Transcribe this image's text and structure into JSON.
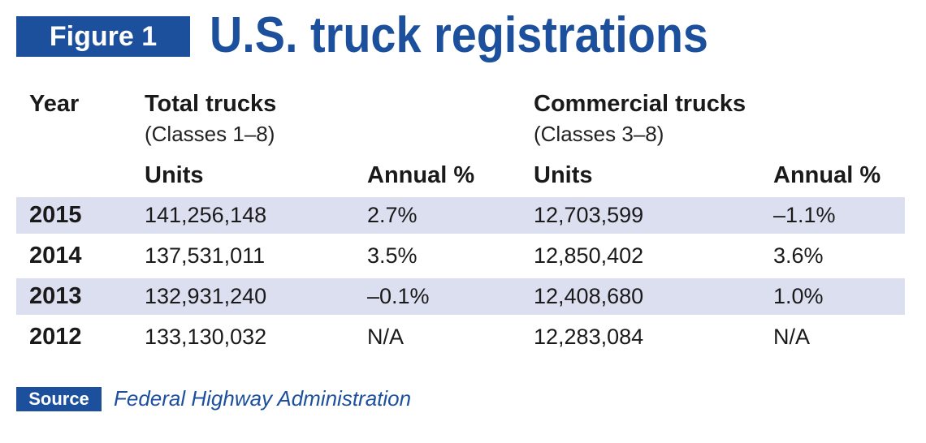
{
  "figure_label": "Figure 1",
  "title": "U.S. truck registrations",
  "chart_data": {
    "type": "table",
    "title": "U.S. truck registrations",
    "columns": {
      "year": "Year",
      "total_group": "Total trucks",
      "total_sub": "(Classes 1–8)",
      "commercial_group": "Commercial trucks",
      "commercial_sub": "(Classes 3–8)",
      "units": "Units",
      "annual": "Annual %"
    },
    "rows": [
      {
        "year": "2015",
        "total_units": "141,256,148",
        "total_annual": "2.7%",
        "commercial_units": "12,703,599",
        "commercial_annual": "–1.1%"
      },
      {
        "year": "2014",
        "total_units": "137,531,011",
        "total_annual": "3.5%",
        "commercial_units": "12,850,402",
        "commercial_annual": "3.6%"
      },
      {
        "year": "2013",
        "total_units": "132,931,240",
        "total_annual": "–0.1%",
        "commercial_units": "12,408,680",
        "commercial_annual": "1.0%"
      },
      {
        "year": "2012",
        "total_units": "133,130,032",
        "total_annual": "N/A",
        "commercial_units": "12,283,084",
        "commercial_annual": "N/A"
      }
    ],
    "shading": "alternating rows"
  },
  "source": {
    "label": "Source",
    "text": "Federal Highway Administration"
  },
  "colors": {
    "brand": "#1c4f9c",
    "row_shade": "#dcdff0"
  }
}
